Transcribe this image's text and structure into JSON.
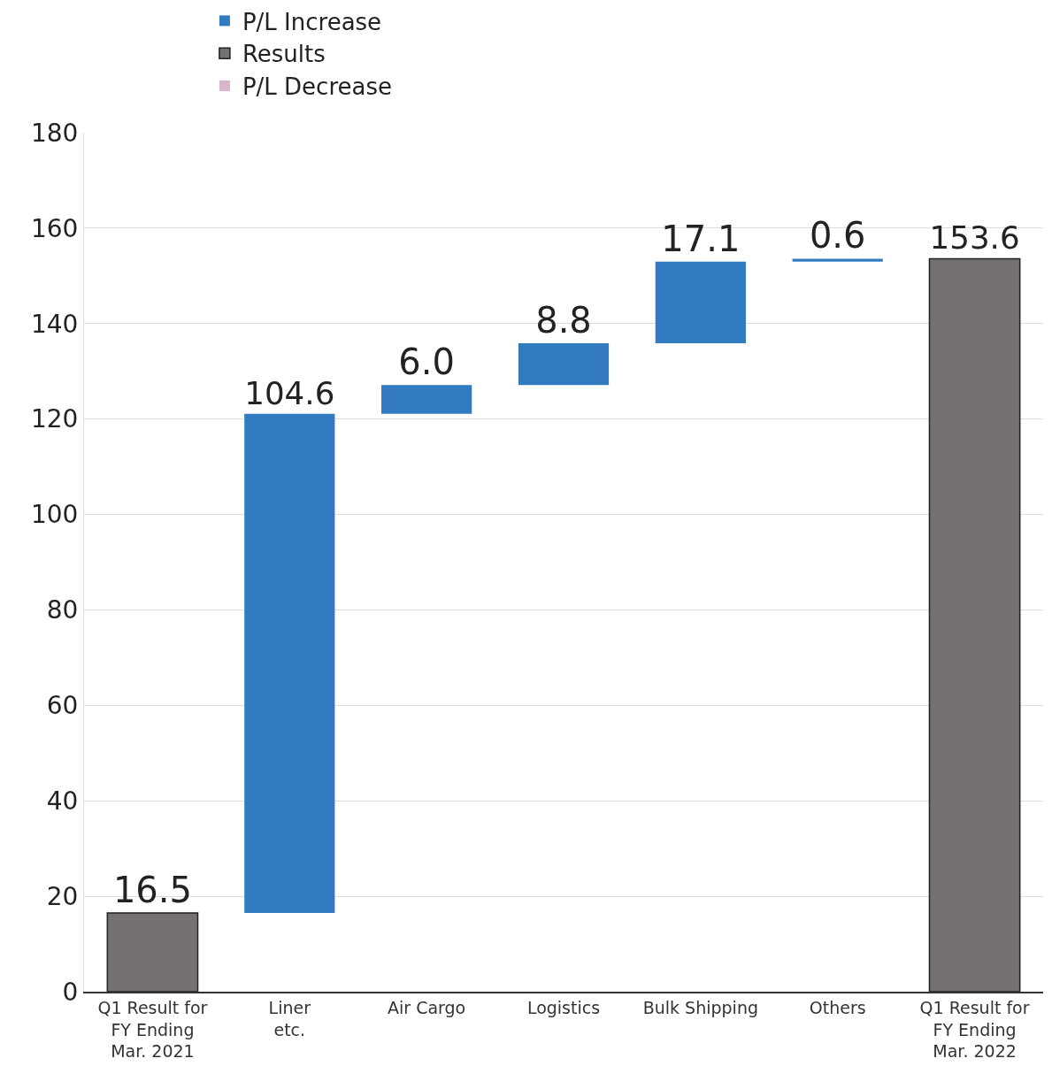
{
  "chart_data": {
    "type": "bar",
    "categories": [
      "Q1 Result for\nFY Ending\nMar. 2021",
      "Liner\netc.",
      "Air Cargo",
      "Logistics",
      "Bulk Shipping",
      "Others",
      "Q1 Result for\nFY Ending\nMar. 2022"
    ],
    "series": [
      {
        "name": "P/L Increase",
        "color": "#337bc1",
        "values": [
          null,
          104.6,
          6.0,
          8.8,
          17.1,
          0.6,
          null
        ],
        "base": [
          null,
          16.5,
          121.1,
          127.1,
          135.9,
          153.0,
          null
        ],
        "value_labels": [
          null,
          "104.6",
          "6.0",
          "8.8",
          "17.1",
          "0.6",
          null
        ]
      },
      {
        "name": "Results",
        "color": "#757071",
        "values": [
          16.5,
          null,
          null,
          null,
          null,
          null,
          153.6
        ],
        "value_labels": [
          "16.5",
          null,
          null,
          null,
          null,
          null,
          "153.6"
        ]
      },
      {
        "name": "P/L Decrease",
        "color": "#d9b5c9",
        "values": [
          null,
          null,
          null,
          null,
          null,
          null,
          null
        ]
      }
    ],
    "ylim": [
      0,
      180
    ],
    "yticks": [
      0,
      20,
      40,
      60,
      80,
      100,
      120,
      140,
      160,
      180
    ],
    "grid": "y",
    "legend": "top"
  }
}
